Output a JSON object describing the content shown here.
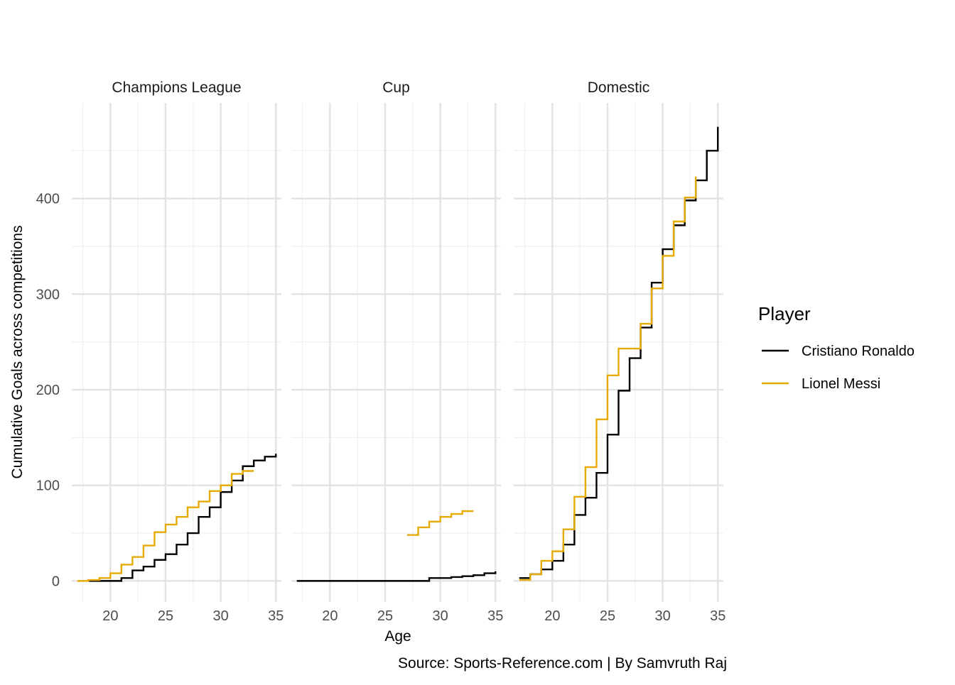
{
  "chart_data": {
    "type": "line",
    "subtype": "step",
    "facets": [
      "Champions League",
      "Cup",
      "Domestic"
    ],
    "xlabel": "Age",
    "ylabel": "Cumulative Goals across competitions",
    "caption": "Source: Sports-Reference.com | By Samvruth Raj",
    "xlim": [
      16.5,
      35.5
    ],
    "ylim": [
      -22,
      500
    ],
    "x_ticks": [
      20,
      25,
      30,
      35
    ],
    "x_tick_labels": [
      "20",
      "25",
      "30",
      "35"
    ],
    "y_ticks": [
      0,
      100,
      200,
      300,
      400
    ],
    "y_tick_labels": [
      "0",
      "100",
      "200",
      "300",
      "400"
    ],
    "grid": true,
    "legend": {
      "title": "Player",
      "placement": "right",
      "entries": [
        "Cristiano Ronaldo",
        "Lionel Messi"
      ]
    },
    "colors": {
      "Cristiano Ronaldo": "#000000",
      "Lionel Messi": "#E6AB02"
    },
    "panels": [
      {
        "facet": "Champions League",
        "series": [
          {
            "name": "Cristiano Ronaldo",
            "x": [
              18,
              19,
              20,
              21,
              22,
              23,
              24,
              25,
              26,
              27,
              28,
              29,
              30,
              31,
              32,
              33,
              34,
              35
            ],
            "y": [
              0,
              0,
              0,
              3,
              11,
              15,
              22,
              28,
              38,
              50,
              67,
              77,
              93,
              105,
              120,
              126,
              130,
              133
            ]
          },
          {
            "name": "Lionel Messi",
            "x": [
              17,
              18,
              19,
              20,
              21,
              22,
              23,
              24,
              25,
              26,
              27,
              28,
              29,
              30,
              31,
              32,
              33
            ],
            "y": [
              0,
              1,
              3,
              8,
              17,
              25,
              37,
              51,
              59,
              67,
              77,
              83,
              94,
              100,
              112,
              115,
              115
            ]
          }
        ]
      },
      {
        "facet": "Cup",
        "series": [
          {
            "name": "Cristiano Ronaldo",
            "x": [
              17,
              18,
              19,
              20,
              21,
              22,
              23,
              24,
              25,
              26,
              27,
              28,
              29,
              30,
              31,
              32,
              33,
              34,
              35
            ],
            "y": [
              0,
              0,
              0,
              0,
              0,
              0,
              0,
              0,
              0,
              0,
              0,
              0,
              3,
              3,
              4,
              5,
              6,
              8,
              10
            ]
          },
          {
            "name": "Lionel Messi",
            "x": [
              27,
              28,
              29,
              30,
              31,
              32,
              33
            ],
            "y": [
              48,
              56,
              62,
              67,
              70,
              73,
              73
            ]
          }
        ]
      },
      {
        "facet": "Domestic",
        "series": [
          {
            "name": "Cristiano Ronaldo",
            "x": [
              17,
              18,
              19,
              20,
              21,
              22,
              23,
              24,
              25,
              26,
              27,
              28,
              29,
              30,
              31,
              32,
              33,
              34,
              35
            ],
            "y": [
              3,
              7,
              12,
              21,
              38,
              69,
              87,
              113,
              153,
              199,
              233,
              265,
              312,
              347,
              372,
              398,
              419,
              450,
              475
            ]
          },
          {
            "name": "Lionel Messi",
            "x": [
              17,
              18,
              19,
              20,
              21,
              22,
              23,
              24,
              25,
              26,
              27,
              28,
              29,
              30,
              31,
              32,
              33
            ],
            "y": [
              1,
              7,
              21,
              31,
              54,
              88,
              119,
              169,
              215,
              243,
              243,
              269,
              306,
              340,
              376,
              401,
              423
            ]
          }
        ]
      }
    ]
  }
}
